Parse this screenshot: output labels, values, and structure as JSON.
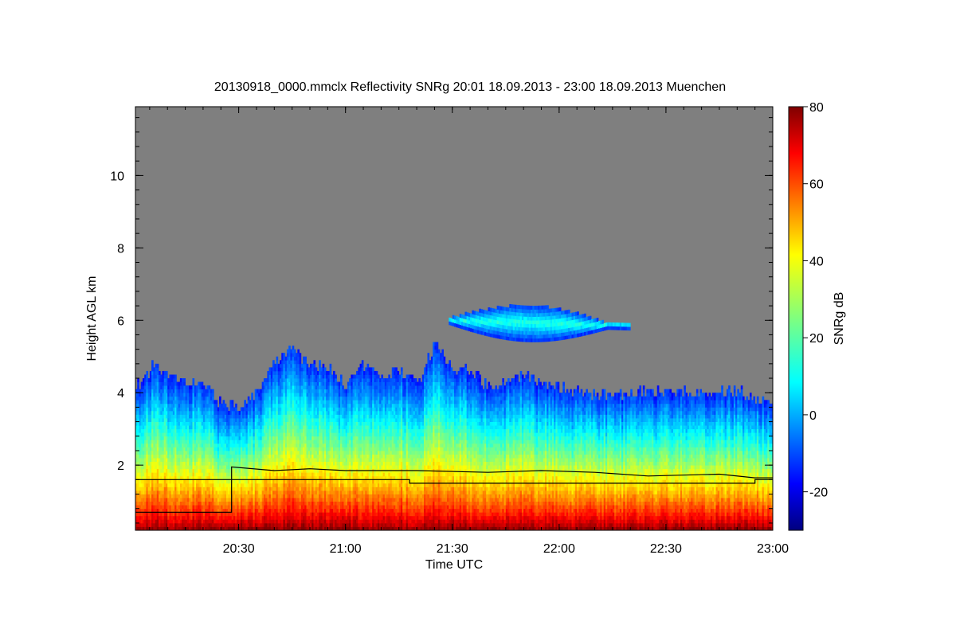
{
  "chart_data": {
    "type": "heatmap",
    "title": "20130918_0000.mmclx Reflectivity SNRg   20:01 18.09.2013 - 23:00 18.09.2013 Muenchen",
    "xlabel": "Time UTC",
    "ylabel": "Height AGL km",
    "colorbar_label": "SNRg dB",
    "x_range_minutes_utc": [
      "20:01",
      "23:00"
    ],
    "x_ticks": [
      "20:30",
      "21:00",
      "21:30",
      "22:00",
      "22:30",
      "23:00"
    ],
    "ylim_km": [
      0.2,
      11.9
    ],
    "y_ticks": [
      "2",
      "4",
      "6",
      "8",
      "10"
    ],
    "colorbar_range_db": [
      -30,
      80
    ],
    "colorbar_ticks": [
      "-20",
      "0",
      "20",
      "40",
      "60",
      "80"
    ],
    "background_color": "#7f7f7f",
    "colormap": "jet",
    "echo_top_km": [
      {
        "t": "20:01",
        "h": 4.1
      },
      {
        "t": "20:06",
        "h": 4.7
      },
      {
        "t": "20:10",
        "h": 4.5
      },
      {
        "t": "20:15",
        "h": 4.3
      },
      {
        "t": "20:20",
        "h": 4.2
      },
      {
        "t": "20:25",
        "h": 3.6
      },
      {
        "t": "20:30",
        "h": 3.6
      },
      {
        "t": "20:35",
        "h": 4.0
      },
      {
        "t": "20:40",
        "h": 4.8
      },
      {
        "t": "20:44",
        "h": 5.2
      },
      {
        "t": "20:50",
        "h": 4.8
      },
      {
        "t": "20:55",
        "h": 4.6
      },
      {
        "t": "21:00",
        "h": 4.1
      },
      {
        "t": "21:04",
        "h": 4.7
      },
      {
        "t": "21:10",
        "h": 4.4
      },
      {
        "t": "21:15",
        "h": 4.6
      },
      {
        "t": "21:20",
        "h": 4.2
      },
      {
        "t": "21:25",
        "h": 5.3
      },
      {
        "t": "21:30",
        "h": 4.6
      },
      {
        "t": "21:35",
        "h": 4.6
      },
      {
        "t": "21:40",
        "h": 4.1
      },
      {
        "t": "21:45",
        "h": 4.3
      },
      {
        "t": "21:50",
        "h": 4.4
      },
      {
        "t": "21:55",
        "h": 4.3
      },
      {
        "t": "22:00",
        "h": 4.1
      },
      {
        "t": "22:05",
        "h": 4.0
      },
      {
        "t": "22:10",
        "h": 3.9
      },
      {
        "t": "22:15",
        "h": 3.9
      },
      {
        "t": "22:20",
        "h": 3.9
      },
      {
        "t": "22:25",
        "h": 4.0
      },
      {
        "t": "22:30",
        "h": 3.9
      },
      {
        "t": "22:35",
        "h": 4.0
      },
      {
        "t": "22:40",
        "h": 3.9
      },
      {
        "t": "22:45",
        "h": 4.0
      },
      {
        "t": "22:50",
        "h": 4.0
      },
      {
        "t": "22:55",
        "h": 3.7
      },
      {
        "t": "23:00",
        "h": 3.7
      }
    ],
    "elevated_layer": {
      "start": "21:29",
      "end": "22:20",
      "base_km": 5.4,
      "top_km": 6.3
    },
    "series": [
      {
        "points": [
          {
            "t": "20:01",
            "h": 0.7
          },
          {
            "t": "20:28",
            "h": 0.7
          },
          {
            "t": "20:28",
            "h": 1.95
          },
          {
            "t": "20:40",
            "h": 1.85
          },
          {
            "t": "20:50",
            "h": 1.9
          },
          {
            "t": "21:00",
            "h": 1.85
          },
          {
            "t": "21:20",
            "h": 1.85
          },
          {
            "t": "21:40",
            "h": 1.8
          },
          {
            "t": "21:55",
            "h": 1.85
          },
          {
            "t": "22:10",
            "h": 1.8
          },
          {
            "t": "22:25",
            "h": 1.7
          },
          {
            "t": "22:45",
            "h": 1.75
          },
          {
            "t": "22:55",
            "h": 1.65
          },
          {
            "t": "23:00",
            "h": 1.65
          }
        ]
      },
      {
        "points": [
          {
            "t": "20:01",
            "h": 1.6
          },
          {
            "t": "21:18",
            "h": 1.6
          },
          {
            "t": "21:18",
            "h": 1.5
          },
          {
            "t": "22:55",
            "h": 1.5
          },
          {
            "t": "22:55",
            "h": 1.6
          },
          {
            "t": "23:00",
            "h": 1.6
          }
        ]
      }
    ]
  }
}
